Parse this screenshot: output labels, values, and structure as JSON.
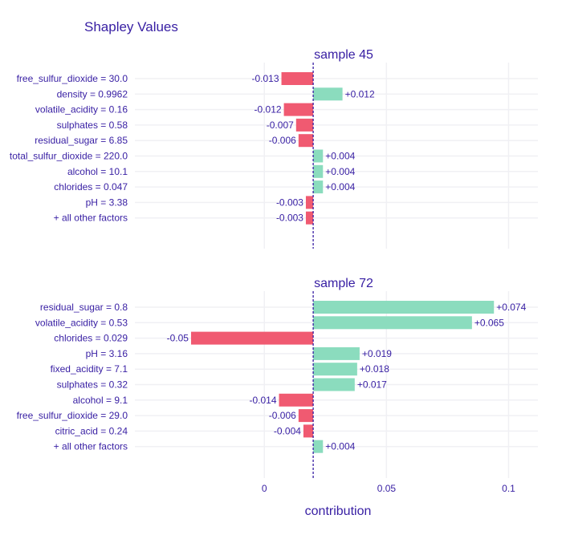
{
  "chart_data": {
    "type": "bar",
    "orientation": "horizontal",
    "title": "Shapley Values",
    "xlabel": "contribution",
    "xlim": [
      -0.053,
      0.112
    ],
    "xticks": [
      0,
      0.05,
      0.1
    ],
    "xtick_labels": [
      "0",
      "0.05",
      "0.1"
    ],
    "baseline": 0.02,
    "colors": {
      "positive": "#8bdcbe",
      "negative": "#f05a71",
      "text": "#371ea3",
      "grid": "#f0f0f4",
      "baseline": "#371ea3"
    },
    "panels": [
      {
        "title": "sample 45",
        "categories": [
          "free_sulfur_dioxide = 30.0",
          "density = 0.9962",
          "volatile_acidity = 0.16",
          "sulphates = 0.58",
          "residual_sugar = 6.85",
          "total_sulfur_dioxide = 220.0",
          "alcohol = 10.1",
          "chlorides = 0.047",
          "pH = 3.38",
          "+ all other factors"
        ],
        "values": [
          -0.013,
          0.012,
          -0.012,
          -0.007,
          -0.006,
          0.004,
          0.004,
          0.004,
          -0.003,
          -0.003
        ],
        "labels": [
          "-0.013",
          "+0.012",
          "-0.012",
          "-0.007",
          "-0.006",
          "+0.004",
          "+0.004",
          "+0.004",
          "-0.003",
          "-0.003"
        ]
      },
      {
        "title": "sample 72",
        "categories": [
          "residual_sugar = 0.8",
          "volatile_acidity = 0.53",
          "chlorides = 0.029",
          "pH = 3.16",
          "fixed_acidity = 7.1",
          "sulphates = 0.32",
          "alcohol = 9.1",
          "free_sulfur_dioxide = 29.0",
          "citric_acid = 0.24",
          "+ all other factors"
        ],
        "values": [
          0.074,
          0.065,
          -0.05,
          0.019,
          0.018,
          0.017,
          -0.014,
          -0.006,
          -0.004,
          0.004
        ],
        "labels": [
          "+0.074",
          "+0.065",
          "-0.05",
          "+0.019",
          "+0.018",
          "+0.017",
          "-0.014",
          "-0.006",
          "-0.004",
          "+0.004"
        ]
      }
    ]
  }
}
